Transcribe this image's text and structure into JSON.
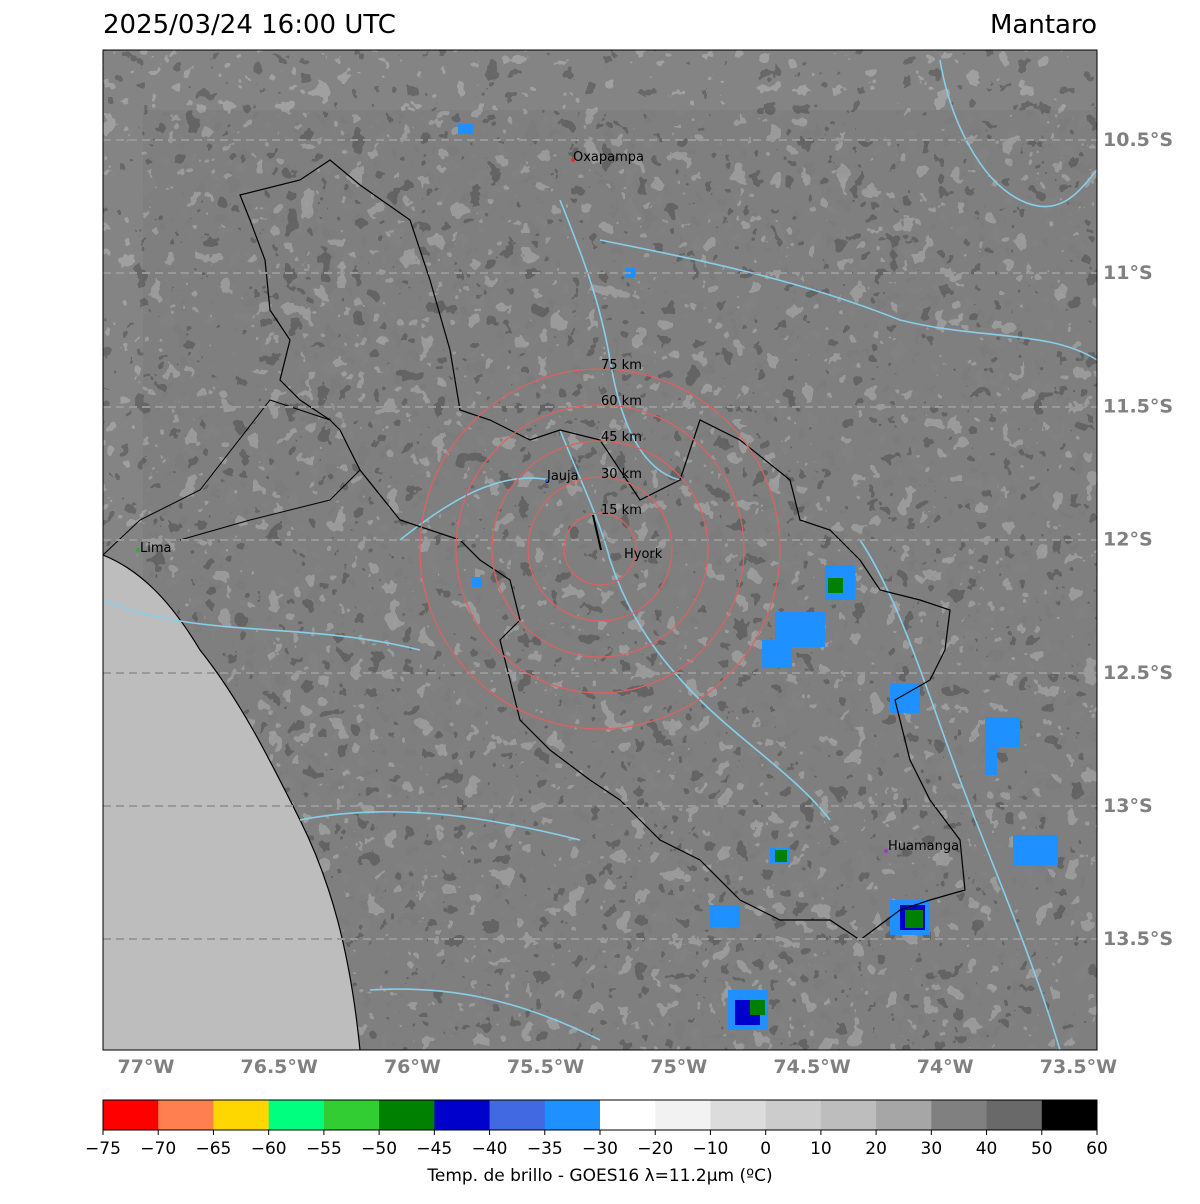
{
  "header": {
    "title": "2025/03/24 16:00 UTC",
    "region": "Mantaro"
  },
  "map": {
    "lat_labels": [
      "10.5°S",
      "11°S",
      "11.5°S",
      "12°S",
      "12.5°S",
      "13°S",
      "13.5°S"
    ],
    "lon_labels": [
      "77°W",
      "76.5°W",
      "76°W",
      "75.5°W",
      "75°W",
      "74.5°W",
      "74°W",
      "73.5°W"
    ],
    "cities": [
      "Oxapampa",
      "Jauja",
      "Hyork",
      "Lima",
      "Huamanga"
    ],
    "rings": [
      "15 km",
      "30 km",
      "45 km",
      "60 km",
      "75 km"
    ]
  },
  "colorbar": {
    "label": "Temp. de brillo - GOES16 λ=11.2μm (ºC)",
    "ticks": [
      {
        "value": -75,
        "label": "−75"
      },
      {
        "value": -70,
        "label": "−70"
      },
      {
        "value": -65,
        "label": "−65"
      },
      {
        "value": -60,
        "label": "−60"
      },
      {
        "value": -55,
        "label": "−55"
      },
      {
        "value": -50,
        "label": "−50"
      },
      {
        "value": -45,
        "label": "−45"
      },
      {
        "value": -40,
        "label": "−40"
      },
      {
        "value": -35,
        "label": "−35"
      },
      {
        "value": -30,
        "label": "−30"
      },
      {
        "value": -20,
        "label": "−20"
      },
      {
        "value": -10,
        "label": "−10"
      },
      0,
      10,
      20,
      30,
      40,
      50,
      60
    ],
    "colors": [
      "#ff0000",
      "#ff7f50",
      "#ffd700",
      "#00ff7f",
      "#32cd32",
      "#008000",
      "#0000cd",
      "#4169e1",
      "#1e90ff",
      "#ffffff",
      "#f2f2f2",
      "#dcdcdc",
      "#cccccc",
      "#bdbdbd",
      "#a6a6a6",
      "#808080",
      "#696969",
      "#000000"
    ]
  }
}
